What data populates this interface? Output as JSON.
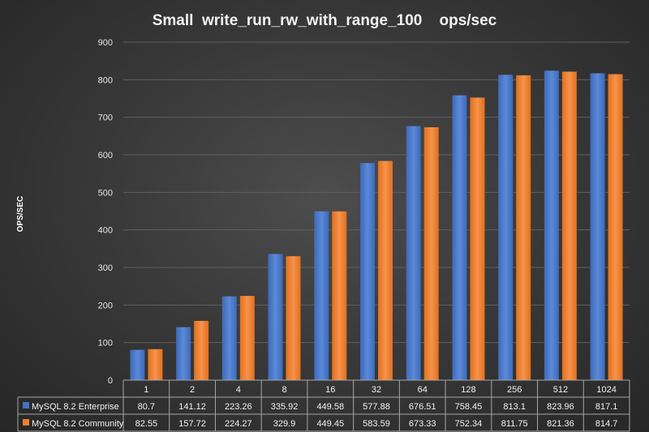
{
  "chart_data": {
    "type": "bar",
    "title": "Small  write_run_rw_with_range_100    ops/sec",
    "xlabel": "",
    "ylabel": "OPS/SEC",
    "ylim": [
      0,
      900
    ],
    "yticks": [
      0,
      100,
      200,
      300,
      400,
      500,
      600,
      700,
      800,
      900
    ],
    "grid": true,
    "legend": "data-table",
    "categories": [
      "1",
      "2",
      "4",
      "8",
      "16",
      "32",
      "64",
      "128",
      "256",
      "512",
      "1024"
    ],
    "series": [
      {
        "name": "MySQL 8.2 Enterprise",
        "color": "#4472c4",
        "values": [
          80.7,
          141.12,
          223.26,
          335.92,
          449.58,
          577.88,
          676.51,
          758.45,
          813.1,
          823.96,
          817.1
        ]
      },
      {
        "name": "MySQL 8.2 Community",
        "color": "#ed7d31",
        "values": [
          82.55,
          157.72,
          224.27,
          329.9,
          449.45,
          583.59,
          673.33,
          752.34,
          811.75,
          821.36,
          814.7
        ]
      }
    ]
  }
}
